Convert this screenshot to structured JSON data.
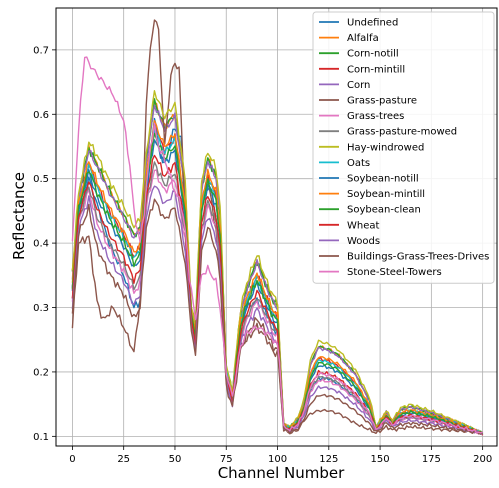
{
  "chart_data": {
    "type": "line",
    "title": "",
    "xlabel": "Channel Number",
    "ylabel": "Reflectance",
    "xlim": [
      -8,
      207
    ],
    "ylim": [
      0.085,
      0.765
    ],
    "xticks": [
      0,
      25,
      50,
      75,
      100,
      125,
      150,
      175,
      200
    ],
    "yticks": [
      0.1,
      0.2,
      0.3,
      0.4,
      0.5,
      0.6,
      0.7
    ],
    "grid": true,
    "legend_position": "top-right",
    "series": [
      {
        "name": "Undefined",
        "color": "#1f77b4",
        "level": 0.34,
        "knots": [
          [
            0,
            0.33
          ],
          [
            3,
            0.44
          ],
          [
            8,
            0.5
          ],
          [
            12,
            0.46
          ],
          [
            18,
            0.4
          ],
          [
            25,
            0.35
          ],
          [
            30,
            0.3
          ],
          [
            33,
            0.31
          ],
          [
            35,
            0.42
          ],
          [
            38,
            0.53
          ],
          [
            40,
            0.6
          ],
          [
            42,
            0.55
          ],
          [
            45,
            0.52
          ],
          [
            48,
            0.56
          ],
          [
            50,
            0.58
          ],
          [
            53,
            0.56
          ],
          [
            55,
            0.44
          ],
          [
            57,
            0.3
          ],
          [
            60,
            0.25
          ],
          [
            62,
            0.43
          ],
          [
            65,
            0.49
          ],
          [
            68,
            0.48
          ],
          [
            70,
            0.44
          ],
          [
            72,
            0.38
          ],
          [
            75,
            0.19
          ],
          [
            78,
            0.15
          ],
          [
            82,
            0.28
          ],
          [
            85,
            0.3
          ],
          [
            90,
            0.31
          ],
          [
            95,
            0.29
          ],
          [
            98,
            0.27
          ],
          [
            100,
            0.26
          ],
          [
            103,
            0.12
          ],
          [
            106,
            0.11
          ],
          [
            110,
            0.12
          ],
          [
            113,
            0.14
          ],
          [
            116,
            0.17
          ],
          [
            120,
            0.19
          ],
          [
            125,
            0.19
          ],
          [
            130,
            0.18
          ],
          [
            138,
            0.16
          ],
          [
            145,
            0.13
          ],
          [
            148,
            0.11
          ],
          [
            151,
            0.12
          ],
          [
            153,
            0.13
          ],
          [
            156,
            0.12
          ],
          [
            160,
            0.13
          ],
          [
            165,
            0.13
          ],
          [
            175,
            0.125
          ],
          [
            190,
            0.115
          ],
          [
            200,
            0.105
          ]
        ]
      },
      {
        "name": "Alfalfa",
        "color": "#ff7f0e",
        "level": 0.9
      },
      {
        "name": "Corn-notill",
        "color": "#2ca02c",
        "level": 0.9
      },
      {
        "name": "Corn-mintill",
        "color": "#d62728",
        "level": 0.72
      },
      {
        "name": "Corn",
        "color": "#9467bd",
        "level": 0.88
      },
      {
        "name": "Grass-pasture",
        "color": "#8c564b",
        "level": 0.36,
        "knots": [
          [
            0,
            0.27
          ],
          [
            3,
            0.4
          ],
          [
            8,
            0.41
          ],
          [
            12,
            0.31
          ],
          [
            15,
            0.28
          ],
          [
            20,
            0.3
          ],
          [
            25,
            0.27
          ],
          [
            30,
            0.23
          ],
          [
            33,
            0.31
          ],
          [
            36,
            0.62
          ],
          [
            38,
            0.7
          ],
          [
            40,
            0.75
          ],
          [
            42,
            0.73
          ],
          [
            45,
            0.55
          ],
          [
            48,
            0.66
          ],
          [
            50,
            0.68
          ],
          [
            52,
            0.67
          ],
          [
            55,
            0.44
          ],
          [
            58,
            0.29
          ],
          [
            60,
            0.23
          ],
          [
            63,
            0.45
          ],
          [
            66,
            0.5
          ],
          [
            70,
            0.42
          ],
          [
            72,
            0.35
          ],
          [
            75,
            0.19
          ],
          [
            78,
            0.15
          ],
          [
            82,
            0.24
          ],
          [
            85,
            0.25
          ],
          [
            90,
            0.27
          ],
          [
            95,
            0.25
          ],
          [
            98,
            0.23
          ],
          [
            100,
            0.23
          ],
          [
            103,
            0.11
          ],
          [
            106,
            0.105
          ],
          [
            110,
            0.11
          ],
          [
            113,
            0.125
          ],
          [
            116,
            0.135
          ],
          [
            120,
            0.14
          ],
          [
            125,
            0.14
          ],
          [
            130,
            0.135
          ],
          [
            138,
            0.12
          ],
          [
            145,
            0.11
          ],
          [
            148,
            0.105
          ],
          [
            151,
            0.11
          ],
          [
            153,
            0.115
          ],
          [
            156,
            0.11
          ],
          [
            160,
            0.112
          ],
          [
            165,
            0.115
          ],
          [
            175,
            0.112
          ],
          [
            190,
            0.108
          ],
          [
            200,
            0.105
          ]
        ]
      },
      {
        "name": "Grass-trees",
        "color": "#e377c2",
        "level": 0.4
      },
      {
        "name": "Grass-pasture-mowed",
        "color": "#7f7f7f",
        "level": 0.45
      },
      {
        "name": "Hay-windrowed",
        "color": "#bcbd22",
        "level": 0.98
      },
      {
        "name": "Oats",
        "color": "#17becf",
        "level": 0.7
      },
      {
        "name": "Soybean-notill",
        "color": "#1f77b4",
        "level": 0.62
      },
      {
        "name": "Soybean-mintill",
        "color": "#ff7f0e",
        "level": 0.75
      },
      {
        "name": "Soybean-clean",
        "color": "#2ca02c",
        "level": 0.66
      },
      {
        "name": "Wheat",
        "color": "#d62728",
        "level": 0.52
      },
      {
        "name": "Woods",
        "color": "#9467bd",
        "level": 0.3
      },
      {
        "name": "Buildings-Grass-Trees-Drives",
        "color": "#8c564b",
        "level": 0.18
      },
      {
        "name": "Stone-Steel-Towers",
        "color": "#e377c2",
        "level": 0.5,
        "knots": [
          [
            0,
            0.4
          ],
          [
            2,
            0.52
          ],
          [
            4,
            0.62
          ],
          [
            6,
            0.69
          ],
          [
            8,
            0.68
          ],
          [
            10,
            0.67
          ],
          [
            15,
            0.65
          ],
          [
            20,
            0.63
          ],
          [
            25,
            0.59
          ],
          [
            28,
            0.52
          ],
          [
            30,
            0.45
          ],
          [
            33,
            0.4
          ],
          [
            35,
            0.45
          ],
          [
            38,
            0.55
          ],
          [
            40,
            0.58
          ],
          [
            42,
            0.55
          ],
          [
            45,
            0.53
          ],
          [
            48,
            0.5
          ],
          [
            50,
            0.48
          ],
          [
            53,
            0.46
          ],
          [
            55,
            0.42
          ],
          [
            57,
            0.35
          ],
          [
            60,
            0.28
          ],
          [
            63,
            0.35
          ],
          [
            66,
            0.36
          ],
          [
            70,
            0.34
          ],
          [
            72,
            0.3
          ],
          [
            75,
            0.2
          ],
          [
            78,
            0.16
          ],
          [
            82,
            0.24
          ],
          [
            85,
            0.26
          ],
          [
            90,
            0.27
          ],
          [
            95,
            0.26
          ],
          [
            98,
            0.25
          ],
          [
            100,
            0.24
          ]
        ]
      }
    ]
  }
}
